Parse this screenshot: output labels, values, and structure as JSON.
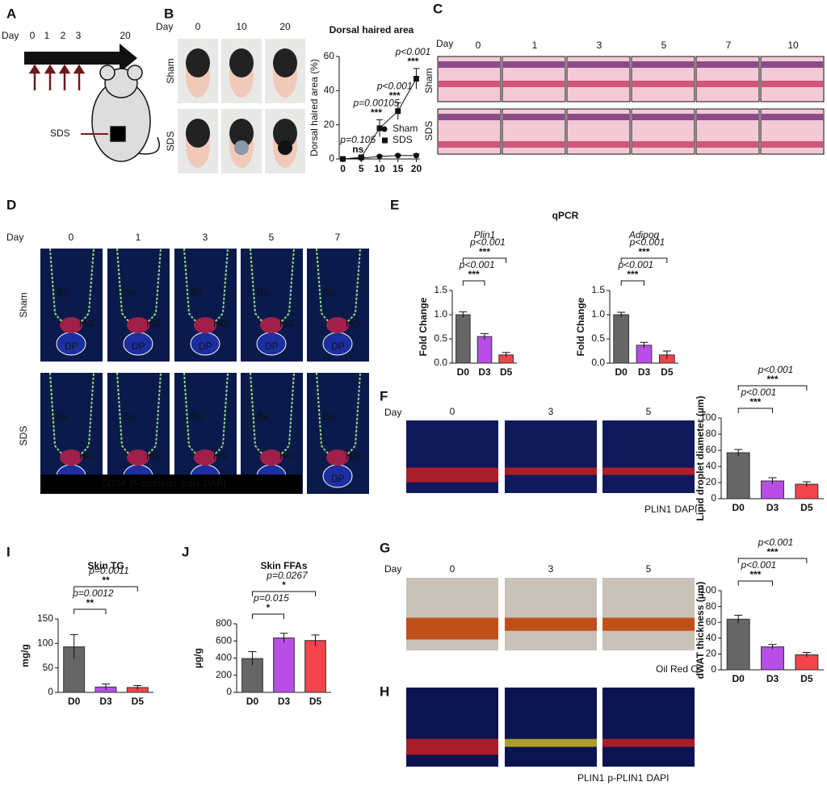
{
  "panel_labels": [
    "A",
    "B",
    "C",
    "D",
    "E",
    "F",
    "G",
    "H",
    "I",
    "J"
  ],
  "panel_a": {
    "day_label": "Day",
    "days": [
      "0",
      "1",
      "2",
      "3",
      "20"
    ],
    "treatment": "SDS"
  },
  "panel_b": {
    "day_label": "Day",
    "days": [
      "0",
      "10",
      "20"
    ],
    "rows": [
      "Sham",
      "SDS"
    ]
  },
  "panel_c": {
    "day_label": "Day",
    "days": [
      "0",
      "1",
      "3",
      "5",
      "7",
      "10"
    ],
    "rows": [
      "Sham",
      "SDS"
    ]
  },
  "panel_d": {
    "day_label": "Day",
    "days": [
      "0",
      "1",
      "3",
      "5",
      "7"
    ],
    "rows": [
      "Sham",
      "SDS"
    ],
    "region_labels": [
      "Bu",
      "HG",
      "DP"
    ],
    "stains": [
      {
        "text": "CD34",
        "color": "#6fd14a"
      },
      {
        "text": "P-cadherin",
        "color": "#ff3030"
      },
      {
        "text": "EdU",
        "color": "#ffffff"
      },
      {
        "text": "DAPI",
        "color": "#3a9cff"
      }
    ]
  },
  "panel_e": {
    "title": "qPCR"
  },
  "panel_f": {
    "day_label": "Day",
    "days": [
      "0",
      "3",
      "5"
    ],
    "stains": [
      {
        "text": "PLIN1",
        "color": "#e8372c"
      },
      {
        "text": "DAPI",
        "color": "#2a3fd6"
      }
    ]
  },
  "panel_g": {
    "day_label": "Day",
    "days": [
      "0",
      "3",
      "5"
    ],
    "stains": [
      {
        "text": "Oil Red O",
        "color": "#e8372c"
      }
    ]
  },
  "panel_h": {
    "stains": [
      {
        "text": "PLIN1",
        "color": "#e8372c"
      },
      {
        "text": "p-PLIN1",
        "color": "#33b833"
      },
      {
        "text": "DAPI",
        "color": "#2a3fd6"
      }
    ]
  },
  "chart_data": [
    {
      "type": "line",
      "title": "Dorsal haired area",
      "ylabel": "Dorsal haired area (%)",
      "x": [
        0,
        5,
        10,
        15,
        20
      ],
      "xlim": [
        -1,
        21
      ],
      "xticks": [
        0,
        5,
        10,
        15,
        20
      ],
      "ylim": [
        0,
        60
      ],
      "yticks": [
        0,
        20,
        40,
        60
      ],
      "series": [
        {
          "name": "Sham",
          "color": "#111111",
          "marker": "circle",
          "values": [
            0,
            0.5,
            1.5,
            2,
            2
          ],
          "errors": [
            0,
            0.3,
            0.5,
            0.5,
            1
          ]
        },
        {
          "name": "SDS",
          "color": "#111111",
          "marker": "square",
          "values": [
            0,
            1,
            18,
            28,
            47
          ],
          "errors": [
            0,
            0.5,
            5,
            5,
            6
          ]
        }
      ],
      "annotations": [
        {
          "p": "p=0.105",
          "sig": "ns"
        },
        {
          "p": "p=0.00105",
          "sig": "***"
        },
        {
          "p": "p<0.001",
          "sig": "***"
        },
        {
          "p": "p<0.001",
          "sig": "***"
        }
      ]
    },
    {
      "type": "bar",
      "title": "Plin1",
      "ylabel": "Fold Change",
      "categories": [
        "D0",
        "D3",
        "D5"
      ],
      "values": [
        1.0,
        0.55,
        0.17
      ],
      "errors": [
        0.06,
        0.06,
        0.05
      ],
      "colors": [
        "#666666",
        "#b84ee6",
        "#f0454a"
      ],
      "ylim": [
        0,
        1.5
      ],
      "yticks": [
        {
          "value": 0,
          "label": "0.0"
        },
        {
          "value": 0.5,
          "label": "0.5"
        },
        {
          "value": 1,
          "label": "1.0"
        },
        {
          "value": 1.5,
          "label": "1.5"
        }
      ],
      "comparisons": [
        {
          "sig": "***",
          "p": "p<0.001"
        },
        {
          "sig": "***",
          "p": "p<0.001"
        }
      ]
    },
    {
      "type": "bar",
      "title": "Adipoq",
      "ylabel": "Fold Change",
      "categories": [
        "D0",
        "D3",
        "D5"
      ],
      "values": [
        1.0,
        0.37,
        0.17
      ],
      "errors": [
        0.05,
        0.06,
        0.08
      ],
      "colors": [
        "#666666",
        "#b84ee6",
        "#f0454a"
      ],
      "ylim": [
        0,
        1.5
      ],
      "yticks": [
        {
          "value": 0,
          "label": "0.0"
        },
        {
          "value": 0.5,
          "label": "0.5"
        },
        {
          "value": 1,
          "label": "1.0"
        },
        {
          "value": 1.5,
          "label": "1.5"
        }
      ],
      "comparisons": [
        {
          "sig": "***",
          "p": "p<0.001"
        },
        {
          "sig": "***",
          "p": "p<0.001"
        }
      ]
    },
    {
      "type": "bar",
      "ylabel": "Lipid droplet diameter (µm)",
      "categories": [
        "D0",
        "D3",
        "D5"
      ],
      "values": [
        57,
        22,
        18
      ],
      "errors": [
        4,
        4,
        3
      ],
      "colors": [
        "#666666",
        "#b84ee6",
        "#f0454a"
      ],
      "ylim": [
        0,
        100
      ],
      "yticks": [
        0,
        20,
        40,
        60,
        80,
        100
      ],
      "comparisons": [
        {
          "sig": "***",
          "p": "p<0.001"
        },
        {
          "sig": "***",
          "p": "p<0.001"
        }
      ]
    },
    {
      "type": "bar",
      "ylabel": "dWAT thickness (µm)",
      "categories": [
        "D0",
        "D3",
        "D5"
      ],
      "values": [
        64,
        29,
        19
      ],
      "errors": [
        5,
        3,
        3
      ],
      "colors": [
        "#666666",
        "#b84ee6",
        "#f0454a"
      ],
      "ylim": [
        0,
        100
      ],
      "yticks": [
        0,
        20,
        40,
        60,
        80,
        100
      ],
      "comparisons": [
        {
          "sig": "***",
          "p": "p<0.001"
        },
        {
          "sig": "***",
          "p": "p<0.001"
        }
      ]
    },
    {
      "type": "bar",
      "title": "Skin TG",
      "ylabel": "mg/g",
      "categories": [
        "D0",
        "D3",
        "D5"
      ],
      "values": [
        93,
        11,
        10
      ],
      "errors": [
        25,
        6,
        4
      ],
      "colors": [
        "#666666",
        "#b84ee6",
        "#f0454a"
      ],
      "ylim": [
        0,
        150
      ],
      "yticks": [
        0,
        50,
        100,
        150
      ],
      "comparisons": [
        {
          "sig": "**",
          "p": "p=0.0012"
        },
        {
          "sig": "**",
          "p": "p=0.0011"
        }
      ]
    },
    {
      "type": "bar",
      "title": "Skin FFAs",
      "ylabel": "µg/g",
      "categories": [
        "D0",
        "D3",
        "D5"
      ],
      "values": [
        395,
        635,
        605
      ],
      "errors": [
        80,
        55,
        65
      ],
      "colors": [
        "#666666",
        "#b84ee6",
        "#f0454a"
      ],
      "ylim": [
        0,
        800
      ],
      "yticks": [
        0,
        200,
        400,
        600,
        800
      ],
      "comparisons": [
        {
          "sig": "*",
          "p": "p=0.015"
        },
        {
          "sig": "*",
          "p": "p=0.0267"
        }
      ]
    }
  ]
}
